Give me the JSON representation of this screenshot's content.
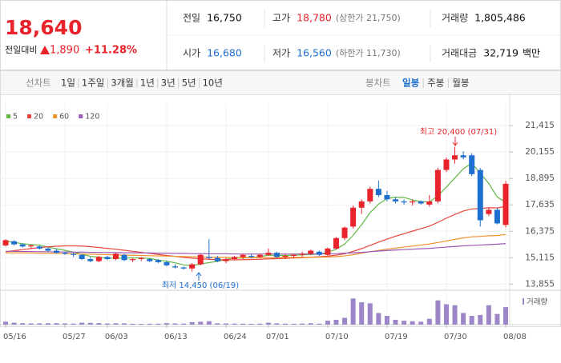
{
  "header": {
    "price": "18,640",
    "change_label": "전일대비",
    "change": "1,890",
    "rate": "+11.28%",
    "info": [
      [
        {
          "label": "전일",
          "value": "16,750"
        },
        {
          "label": "고가",
          "value": "18,780",
          "note": "(상한가 21,750)"
        },
        {
          "label": "거래량",
          "value": "1,805,486"
        }
      ],
      [
        {
          "label": "시가",
          "value": "16,680"
        },
        {
          "label": "저가",
          "value": "16,560",
          "note": "(하한가 11,730)"
        },
        {
          "label": "거래대금",
          "value": "32,719",
          "unit": "백만"
        }
      ]
    ]
  },
  "toolbar": {
    "line_label": "선차트",
    "periods": [
      "1일",
      "1주일",
      "3개월",
      "1년",
      "3년",
      "5년",
      "10년"
    ],
    "candle_label": "봉차트",
    "candle_periods": [
      "일봉",
      "주봉",
      "월봉"
    ]
  },
  "chart_data": {
    "type": "candlestick",
    "categories": [
      "05/16",
      null,
      null,
      null,
      null,
      null,
      null,
      "05/27",
      null,
      null,
      null,
      null,
      "06/03",
      null,
      null,
      null,
      null,
      null,
      null,
      "06/13",
      null,
      null,
      null,
      null,
      null,
      null,
      "06/24",
      null,
      null,
      null,
      null,
      "07/01",
      null,
      null,
      null,
      null,
      null,
      null,
      "07/10",
      null,
      null,
      null,
      null,
      null,
      null,
      "07/19",
      null,
      null,
      null,
      null,
      null,
      null,
      "07/30",
      null,
      null,
      null,
      null,
      null,
      null,
      "08/08"
    ],
    "open": [
      15700,
      15900,
      15750,
      15650,
      15650,
      15550,
      15450,
      15350,
      15300,
      15250,
      15050,
      14950,
      15150,
      15050,
      15250,
      15000,
      15050,
      15050,
      15000,
      14900,
      14700,
      14650,
      14600,
      14800,
      15150,
      15100,
      14950,
      15050,
      15150,
      15200,
      15150,
      15250,
      15350,
      15150,
      15200,
      15250,
      15300,
      15400,
      15250,
      15550,
      16050,
      16600,
      17500,
      17800,
      18400,
      18100,
      17900,
      17800,
      17750,
      17800,
      17650,
      17800,
      19300,
      19800,
      20000,
      20000,
      19300,
      17200,
      17400,
      16680
    ],
    "high": [
      16000,
      15950,
      15800,
      15750,
      15700,
      15600,
      15550,
      15400,
      15350,
      15300,
      15150,
      15200,
      15200,
      15350,
      15300,
      15100,
      15150,
      15100,
      15050,
      14950,
      14800,
      14700,
      14850,
      15300,
      16000,
      15200,
      15100,
      15200,
      15300,
      15300,
      15300,
      15550,
      15400,
      15300,
      15300,
      15400,
      15500,
      15450,
      15600,
      16100,
      16600,
      17600,
      17900,
      18500,
      18800,
      18300,
      18000,
      17900,
      17900,
      17850,
      18100,
      19400,
      19900,
      20400,
      20200,
      20100,
      19400,
      17500,
      17500,
      18780
    ],
    "low": [
      15650,
      15700,
      15600,
      15550,
      15500,
      15400,
      15300,
      15250,
      15150,
      15000,
      14900,
      14900,
      15000,
      15000,
      14950,
      14900,
      14950,
      14900,
      14850,
      14700,
      14600,
      14550,
      14450,
      14750,
      15050,
      14900,
      14850,
      15000,
      15050,
      15100,
      15100,
      15200,
      15100,
      15050,
      15100,
      15150,
      15250,
      15200,
      15200,
      15500,
      15950,
      16500,
      17200,
      17700,
      18000,
      17800,
      17700,
      17650,
      17600,
      17650,
      17550,
      17700,
      19200,
      19600,
      19800,
      19000,
      16600,
      17100,
      16700,
      16560
    ],
    "close": [
      15950,
      15750,
      15650,
      15700,
      15550,
      15450,
      15350,
      15300,
      15250,
      15050,
      14950,
      15150,
      15050,
      15300,
      15000,
      15050,
      15100,
      14950,
      14900,
      14750,
      14650,
      14600,
      14800,
      15250,
      15100,
      14950,
      15050,
      15150,
      15250,
      15150,
      15250,
      15350,
      15150,
      15200,
      15250,
      15300,
      15450,
      15250,
      15550,
      16050,
      16550,
      17500,
      17800,
      18400,
      18100,
      17900,
      17800,
      17750,
      17800,
      17700,
      17800,
      19300,
      19800,
      20000,
      19900,
      19100,
      16900,
      17400,
      16750,
      18640
    ],
    "volume": [
      300000,
      200000,
      150000,
      120000,
      130000,
      140000,
      150000,
      120000,
      110000,
      200000,
      180000,
      160000,
      110000,
      140000,
      130000,
      90000,
      80000,
      90000,
      100000,
      150000,
      120000,
      110000,
      250000,
      300000,
      350000,
      130000,
      120000,
      110000,
      100000,
      90000,
      100000,
      200000,
      130000,
      100000,
      90000,
      110000,
      150000,
      100000,
      400000,
      500000,
      700000,
      2700000,
      2300000,
      2200000,
      1200000,
      900000,
      500000,
      400000,
      350000,
      300000,
      600000,
      2500000,
      2100000,
      2000000,
      1200000,
      900000,
      1000000,
      2000000,
      1100000,
      1805486
    ],
    "up_color": "#e8232b",
    "down_color": "#1e6fcf",
    "volume_color": "#9d86c8",
    "volume_label": "거래량",
    "volume_ylim": [
      0,
      3300000
    ],
    "moving_averages": [
      {
        "name": "5",
        "color": "#62b845",
        "values": [
          15900,
          15850,
          15780,
          15740,
          15720,
          15620,
          15540,
          15470,
          15380,
          15280,
          15180,
          15140,
          15090,
          15100,
          15090,
          15110,
          15100,
          15080,
          15000,
          14950,
          14870,
          14770,
          14740,
          14810,
          14880,
          14940,
          15030,
          15100,
          15100,
          15110,
          15170,
          15230,
          15230,
          15220,
          15240,
          15250,
          15270,
          15290,
          15360,
          15520,
          15770,
          16180,
          16690,
          17260,
          17670,
          17940,
          18000,
          17990,
          17870,
          17790,
          17770,
          18070,
          18480,
          18920,
          19360,
          19620,
          19140,
          18660,
          18010,
          17760
        ]
      },
      {
        "name": "20",
        "color": "#e8443a",
        "values": [
          15400,
          15450,
          15500,
          15550,
          15600,
          15630,
          15660,
          15680,
          15680,
          15670,
          15640,
          15600,
          15560,
          15520,
          15470,
          15420,
          15370,
          15320,
          15270,
          15220,
          15180,
          15130,
          15090,
          15060,
          15040,
          15020,
          15010,
          15010,
          15020,
          15030,
          15040,
          15060,
          15070,
          15080,
          15100,
          15110,
          15140,
          15160,
          15190,
          15240,
          15300,
          15420,
          15550,
          15700,
          15860,
          16000,
          16140,
          16260,
          16380,
          16500,
          16620,
          16800,
          17000,
          17180,
          17340,
          17440,
          17460,
          17500,
          17490,
          17560
        ]
      },
      {
        "name": "60",
        "color": "#f0922b",
        "values": [
          15350,
          15350,
          15340,
          15340,
          15330,
          15330,
          15320,
          15310,
          15300,
          15290,
          15280,
          15270,
          15260,
          15250,
          15240,
          15230,
          15220,
          15210,
          15200,
          15190,
          15180,
          15170,
          15160,
          15150,
          15140,
          15130,
          15130,
          15120,
          15120,
          15120,
          15120,
          15120,
          15120,
          15120,
          15130,
          15130,
          15140,
          15140,
          15150,
          15170,
          15200,
          15260,
          15330,
          15400,
          15460,
          15520,
          15570,
          15620,
          15670,
          15720,
          15770,
          15840,
          15910,
          15990,
          16060,
          16110,
          16130,
          16160,
          16170,
          16220
        ]
      },
      {
        "name": "120",
        "color": "#9b59b6",
        "values": [
          15420,
          15420,
          15410,
          15410,
          15400,
          15400,
          15390,
          15390,
          15380,
          15380,
          15370,
          15370,
          15360,
          15360,
          15350,
          15350,
          15340,
          15340,
          15330,
          15330,
          15320,
          15320,
          15310,
          15310,
          15300,
          15300,
          15300,
          15290,
          15290,
          15290,
          15290,
          15290,
          15290,
          15290,
          15290,
          15290,
          15290,
          15300,
          15300,
          15310,
          15330,
          15350,
          15370,
          15400,
          15430,
          15460,
          15480,
          15500,
          15520,
          15540,
          15560,
          15590,
          15620,
          15650,
          15680,
          15700,
          15720,
          15740,
          15760,
          15790
        ]
      }
    ],
    "ylim": [
      13600,
      22450
    ],
    "yticks": [
      {
        "value": 21415,
        "label": "21,415"
      },
      {
        "value": 20155,
        "label": "20,155"
      },
      {
        "value": 18895,
        "label": "18,895"
      },
      {
        "value": 17635,
        "label": "17,635"
      },
      {
        "value": 16375,
        "label": "16,375"
      },
      {
        "value": 15115,
        "label": "15,115"
      },
      {
        "value": 13855,
        "label": "13,855"
      }
    ],
    "grid": true,
    "annotations": {
      "high": "최고 20,400 (07/31)",
      "low": "최저 14,450 (06/19)"
    }
  }
}
